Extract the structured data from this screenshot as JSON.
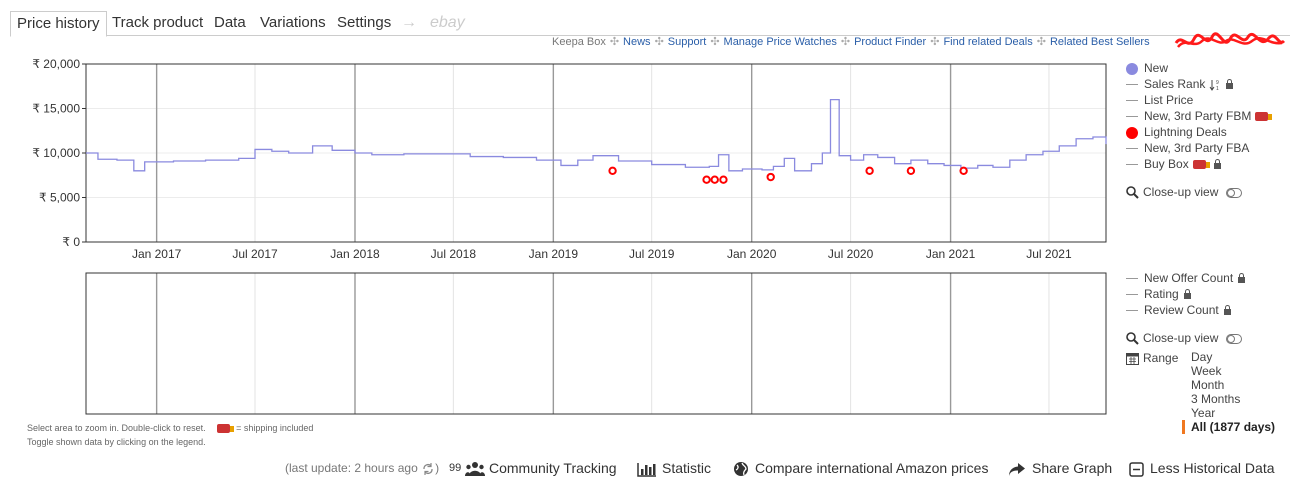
{
  "tabs": [
    {
      "label": "Price history",
      "active": true
    },
    {
      "label": "Track product"
    },
    {
      "label": "Data"
    },
    {
      "label": "Variations"
    },
    {
      "label": "Settings"
    }
  ],
  "tab_arrow": "→",
  "tab_ebay": "ebay",
  "links": [
    "Keepa Box",
    "News",
    "Support",
    "Manage Price Watches",
    "Product Finder",
    "Find related Deals",
    "Related Best Sellers"
  ],
  "link_separator": "✣",
  "chart_data": {
    "type": "line",
    "y_ticks": [
      "₹ 20,000",
      "₹ 15,000",
      "₹ 10,000",
      "₹ 5,000",
      "₹ 0"
    ],
    "x_ticks": [
      "Jan 2017",
      "Jul 2017",
      "Jan 2018",
      "Jul 2018",
      "Jan 2019",
      "Jul 2019",
      "Jan 2020",
      "Jul 2020",
      "Jan 2021",
      "Jul 2021"
    ],
    "ylim": [
      0,
      20000
    ],
    "xlim": [
      "2016-08-24",
      "2021-10-14"
    ],
    "line_color": "#8a8adf",
    "deal_color": "#ff0000",
    "series": [
      {
        "name": "New",
        "x": [
          "2016-08-24",
          "2016-09-15",
          "2016-10-20",
          "2016-11-05",
          "2016-11-20",
          "2016-12-10",
          "2017-02-01",
          "2017-04-01",
          "2017-06-01",
          "2017-07-01",
          "2017-08-01",
          "2017-09-01",
          "2017-10-15",
          "2017-11-20",
          "2018-01-01",
          "2018-02-01",
          "2018-04-01",
          "2018-06-01",
          "2018-08-01",
          "2018-10-01",
          "2018-12-01",
          "2019-01-15",
          "2019-02-15",
          "2019-03-15",
          "2019-05-01",
          "2019-07-01",
          "2019-09-01",
          "2019-10-15",
          "2019-11-01",
          "2019-11-20",
          "2019-12-15",
          "2020-01-20",
          "2020-02-10",
          "2020-03-01",
          "2020-03-20",
          "2020-04-20",
          "2020-05-10",
          "2020-05-25",
          "2020-06-10",
          "2020-07-01",
          "2020-07-25",
          "2020-08-20",
          "2020-09-20",
          "2020-10-20",
          "2020-11-20",
          "2020-12-20",
          "2021-01-20",
          "2021-02-20",
          "2021-03-20",
          "2021-04-20",
          "2021-05-20",
          "2021-06-20",
          "2021-07-20",
          "2021-08-20",
          "2021-09-20",
          "2021-10-14"
        ],
        "y": [
          10000,
          9300,
          9200,
          9200,
          8000,
          9000,
          9100,
          9200,
          9400,
          10400,
          10200,
          10000,
          10800,
          10300,
          10000,
          9800,
          9900,
          9900,
          9600,
          9500,
          9200,
          8600,
          9200,
          9700,
          9100,
          8700,
          8400,
          8500,
          9800,
          8000,
          8200,
          8100,
          8500,
          9400,
          8000,
          8800,
          10000,
          16000,
          9700,
          9200,
          9800,
          9500,
          8800,
          9200,
          8800,
          8600,
          8300,
          8600,
          8400,
          9200,
          9800,
          10200,
          10800,
          11600,
          11800,
          11000
        ],
        "y_unit": "₹"
      },
      {
        "name": "Lightning Deals",
        "x": [
          "2019-04-20",
          "2019-10-10",
          "2019-10-25",
          "2019-11-10",
          "2020-02-05",
          "2020-08-05",
          "2020-10-20",
          "2021-01-25"
        ],
        "y": [
          8000,
          7000,
          7000,
          7000,
          7300,
          8000,
          8000,
          8000
        ],
        "y_unit": "₹"
      }
    ]
  },
  "legend_top": [
    {
      "label": "New",
      "kind": "dot",
      "color": "#8a8adf"
    },
    {
      "label": "Sales Rank",
      "kind": "line",
      "suffix_icon": "sort-icon",
      "lock": true
    },
    {
      "label": "List Price",
      "kind": "line"
    },
    {
      "label": "New, 3rd Party FBM",
      "kind": "line",
      "truck": true
    },
    {
      "label": "Lightning Deals",
      "kind": "dot",
      "color": "#ff0000"
    },
    {
      "label": "New, 3rd Party FBA",
      "kind": "line"
    },
    {
      "label": "Buy Box",
      "kind": "line",
      "truck": true,
      "lock": true
    }
  ],
  "closeup_label": "Close-up view",
  "legend_bottom": [
    {
      "label": "New Offer Count",
      "lock": true
    },
    {
      "label": "Rating",
      "lock": true
    },
    {
      "label": "Review Count",
      "lock": true
    }
  ],
  "range_label": "Range",
  "ranges": [
    "Day",
    "Week",
    "Month",
    "3 Months",
    "Year",
    "All (1877 days)"
  ],
  "help_line1": "Select area to zoom in. Double-click to reset.",
  "help_shipping": "= shipping included",
  "help_line2": "Toggle shown data by clicking on the legend.",
  "bottom": {
    "last_update": "(last update: 2 hours ago",
    "tracking_count": "99",
    "community": "Community Tracking",
    "statistic": "Statistic",
    "compare": "Compare international Amazon prices",
    "share": "Share Graph",
    "less": "Less Historical Data"
  }
}
